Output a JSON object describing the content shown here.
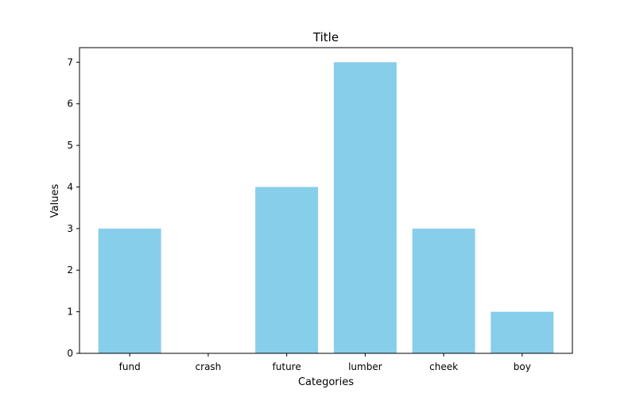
{
  "chart_data": {
    "type": "bar",
    "title": "Title",
    "xlabel": "Categories",
    "ylabel": "Values",
    "categories": [
      "fund",
      "crash",
      "future",
      "lumber",
      "cheek",
      "boy"
    ],
    "values": [
      3,
      0,
      4,
      7,
      3,
      1
    ],
    "yticks": [
      "0",
      "1",
      "2",
      "3",
      "4",
      "5",
      "6",
      "7"
    ],
    "ylim": [
      0,
      7.35
    ],
    "bar_color": "#87ceeb",
    "grid": false,
    "legend": "none"
  }
}
